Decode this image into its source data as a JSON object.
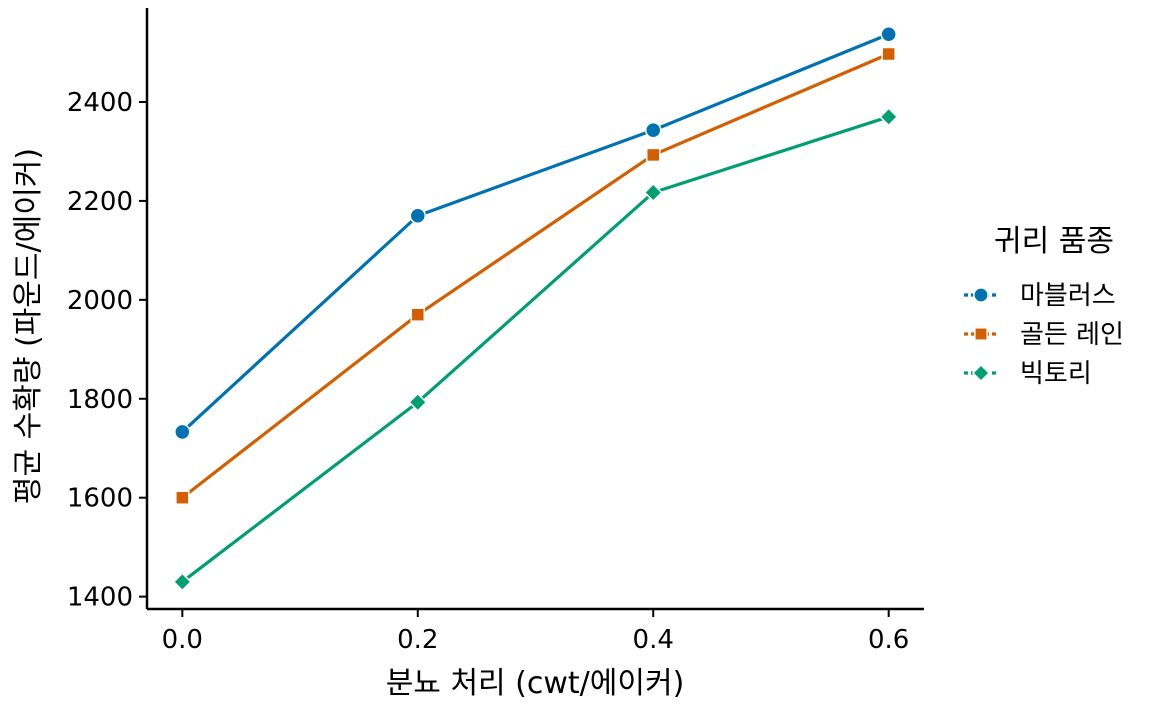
{
  "chart_data": {
    "type": "line",
    "xlabel": "분뇨 처리 (cwt/에이커)",
    "ylabel": "평균 수확량 (파운드/에이커)",
    "x": [
      0.0,
      0.2,
      0.4,
      0.6
    ],
    "x_tick_labels": [
      "0.0",
      "0.2",
      "0.4",
      "0.6"
    ],
    "xlim": [
      -0.03,
      0.63
    ],
    "y_ticks": [
      1400,
      1600,
      1800,
      2000,
      2200,
      2400
    ],
    "ylim": [
      1375,
      2590
    ],
    "grid": false,
    "legend": {
      "title": "귀리 품종",
      "placement": "right"
    },
    "series": [
      {
        "name": "마블러스",
        "values": [
          1733,
          2170,
          2343,
          2537
        ],
        "color": "#0072b2",
        "marker": "circle"
      },
      {
        "name": "골든 레인",
        "values": [
          1600,
          1970,
          2293,
          2497
        ],
        "color": "#d55e00",
        "marker": "square"
      },
      {
        "name": "빅토리",
        "values": [
          1430,
          1793,
          2217,
          2370
        ],
        "color": "#009e73",
        "marker": "diamond"
      }
    ]
  }
}
